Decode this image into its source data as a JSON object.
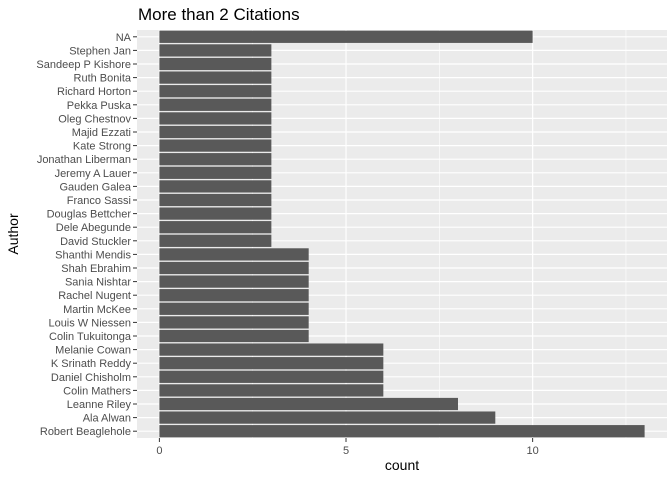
{
  "chart_data": {
    "type": "bar",
    "orientation": "horizontal",
    "title": "More than 2 Citations",
    "xlabel": "count",
    "ylabel": "Author",
    "xlim": [
      -0.6,
      13.6
    ],
    "xticks": [
      0,
      5,
      10
    ],
    "grid": true,
    "legend": "none",
    "colors": {
      "bar": "#595959",
      "panel": "#ebebeb",
      "grid": "#ffffff"
    },
    "categories": [
      "NA",
      "Stephen Jan",
      "Sandeep P Kishore",
      "Ruth Bonita",
      "Richard Horton",
      "Pekka Puska",
      "Oleg Chestnov",
      "Majid Ezzati",
      "Kate Strong",
      "Jonathan Liberman",
      "Jeremy A Lauer",
      "Gauden Galea",
      "Franco Sassi",
      "Douglas Bettcher",
      "Dele Abegunde",
      "David Stuckler",
      "Shanthi Mendis",
      "Shah Ebrahim",
      "Sania Nishtar",
      "Rachel Nugent",
      "Martin McKee",
      "Louis W Niessen",
      "Colin Tukuitonga",
      "Melanie Cowan",
      "K Srinath Reddy",
      "Daniel Chisholm",
      "Colin Mathers",
      "Leanne Riley",
      "Ala Alwan",
      "Robert Beaglehole"
    ],
    "values": [
      10,
      3,
      3,
      3,
      3,
      3,
      3,
      3,
      3,
      3,
      3,
      3,
      3,
      3,
      3,
      3,
      4,
      4,
      4,
      4,
      4,
      4,
      4,
      6,
      6,
      6,
      6,
      8,
      9,
      13
    ]
  }
}
